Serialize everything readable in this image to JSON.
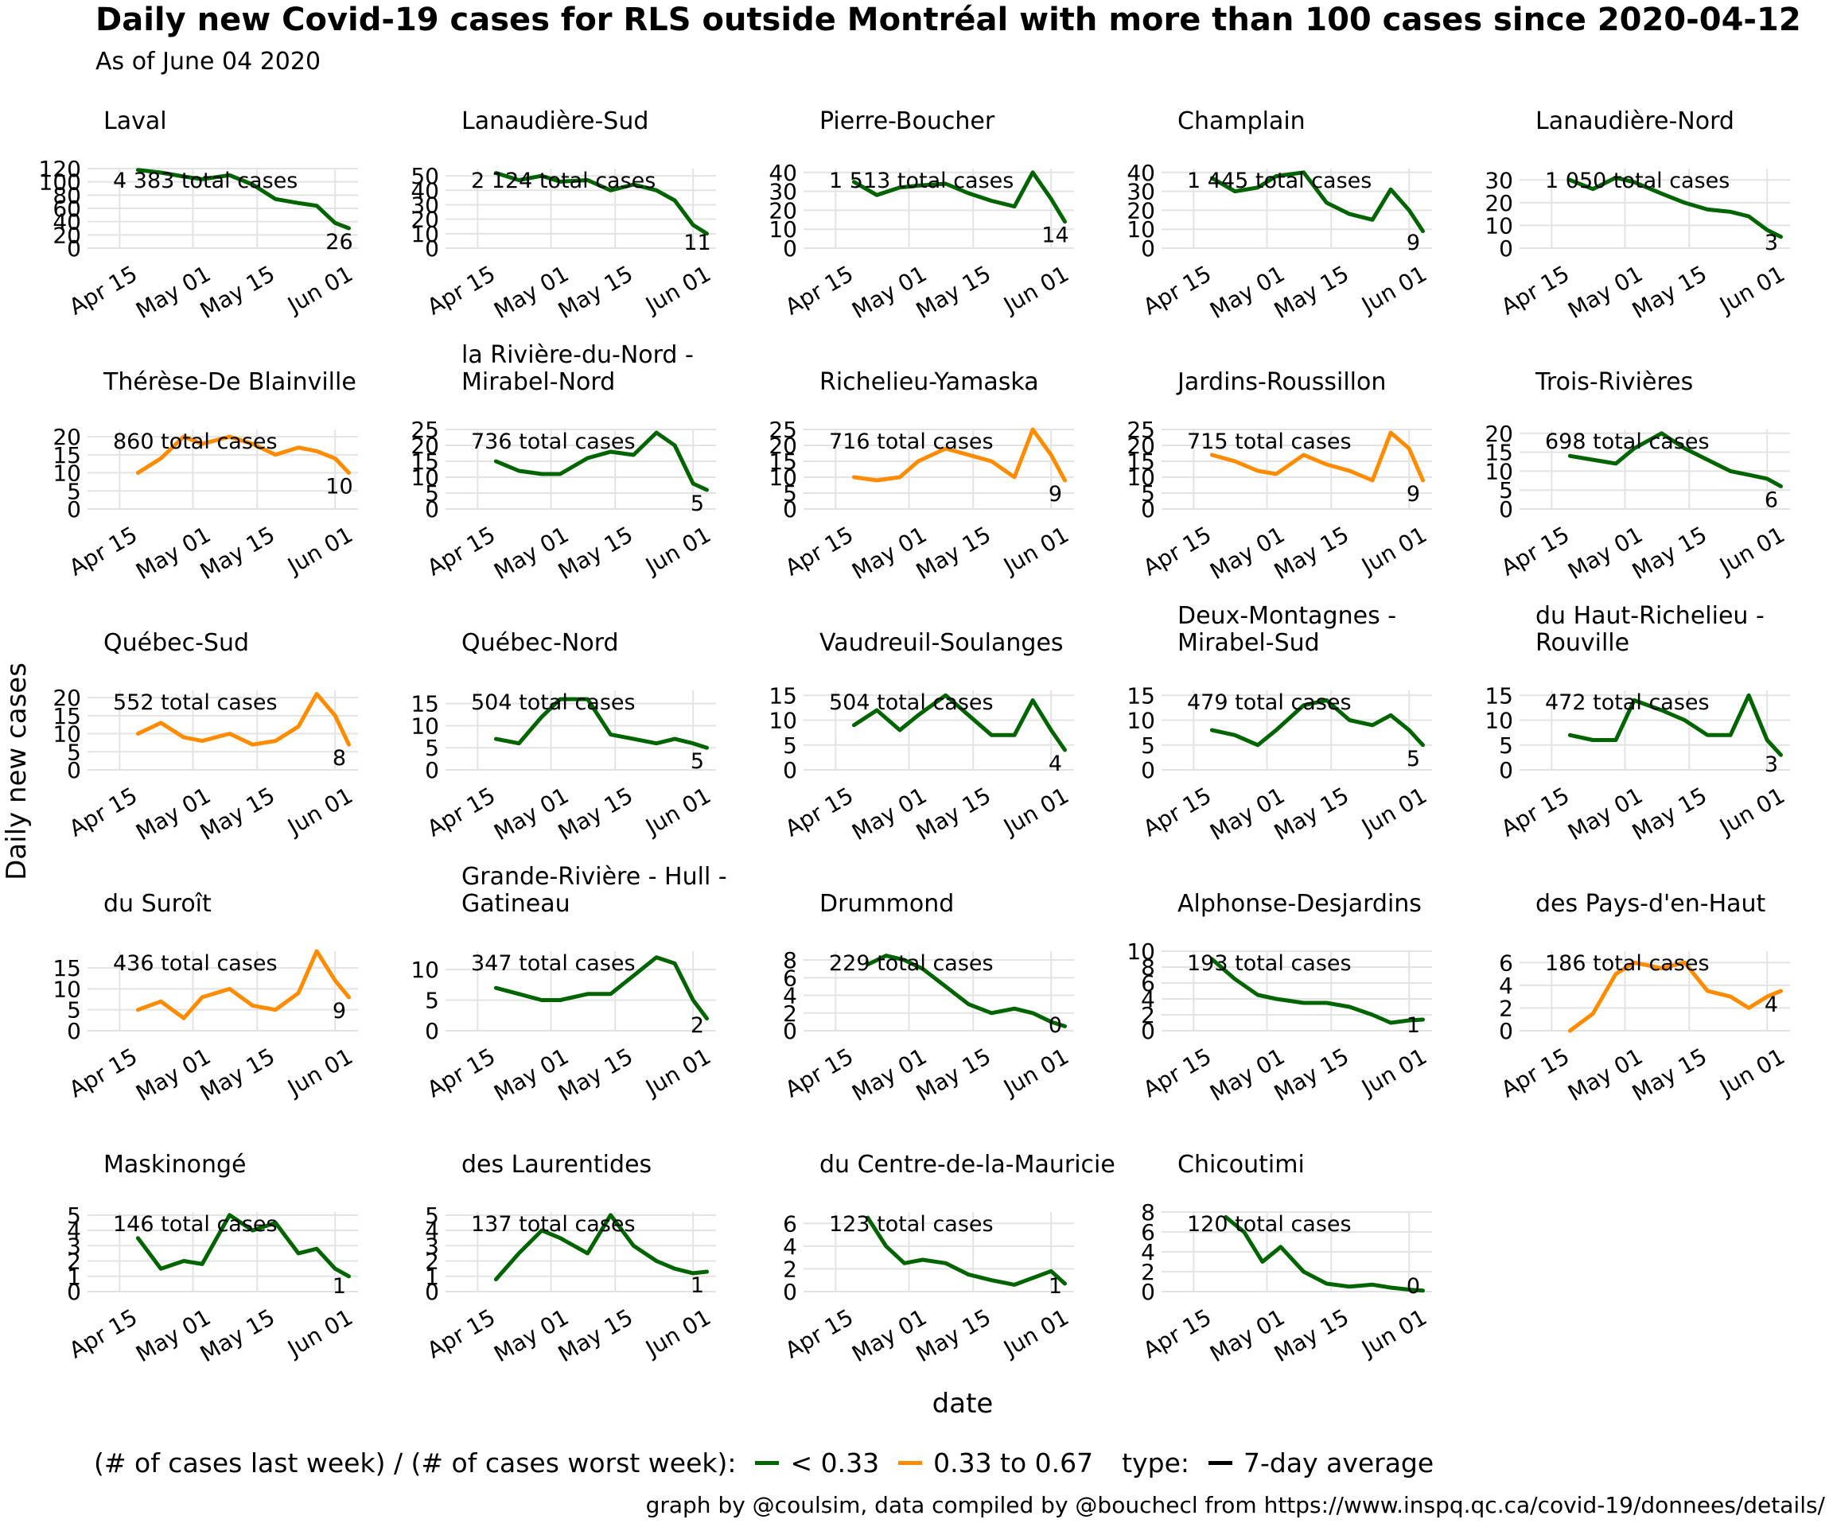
{
  "title": "Daily new Covid-19 cases for RLS outside Montréal with more than 100 cases since 2020-04-12",
  "subtitle": "As of June 04 2020",
  "legend": {
    "ratio_label": "(# of cases last week) / (# of cases worst week):",
    "items": [
      {
        "label": "< 0.33",
        "color": "#006400"
      },
      {
        "label": "0.33 to 0.67",
        "color": "#FF8C00"
      }
    ],
    "type_label": "type:",
    "type_item": {
      "label": "7-day average",
      "color": "#000000"
    }
  },
  "caption": "graph by @coulsim, data compiled by @bouchecl from https://www.inspq.qc.ca/covid-19/donnees/details/",
  "chart_data": {
    "type": "line",
    "xlabel": "date",
    "ylabel": "Daily new cases",
    "x_ticks": [
      "Apr 15",
      "May 01",
      "May 15",
      "Jun 01"
    ],
    "x_tick_dates": [
      "2020-04-15",
      "2020-05-01",
      "2020-05-15",
      "2020-06-01"
    ],
    "xlim": [
      "2020-04-08",
      "2020-06-06"
    ],
    "grid": true,
    "legend_position": "bottom",
    "facets": [
      {
        "name": "Laval",
        "total": "4 383 total cases",
        "last": "26",
        "color": "#006400",
        "yticks": [
          0,
          20,
          40,
          60,
          80,
          100,
          120
        ],
        "ylim": [
          0,
          120
        ],
        "x": [
          "2020-04-19",
          "2020-04-24",
          "2020-04-29",
          "2020-05-03",
          "2020-05-09",
          "2020-05-14",
          "2020-05-19",
          "2020-05-24",
          "2020-05-28",
          "2020-06-01",
          "2020-06-04"
        ],
        "y": [
          118,
          114,
          108,
          104,
          110,
          96,
          74,
          68,
          64,
          38,
          30
        ]
      },
      {
        "name": "Lanaudière-Sud",
        "total": "2 124 total cases",
        "last": "11",
        "color": "#006400",
        "yticks": [
          0,
          10,
          20,
          30,
          40,
          50
        ],
        "ylim": [
          0,
          55
        ],
        "x": [
          "2020-04-19",
          "2020-04-24",
          "2020-04-29",
          "2020-05-03",
          "2020-05-09",
          "2020-05-14",
          "2020-05-19",
          "2020-05-24",
          "2020-05-28",
          "2020-06-01",
          "2020-06-04"
        ],
        "y": [
          52,
          47,
          50,
          46,
          47,
          40,
          44,
          40,
          33,
          16,
          10
        ]
      },
      {
        "name": "Pierre-Boucher",
        "total": "1 513 total cases",
        "last": "14",
        "color": "#006400",
        "yticks": [
          0,
          10,
          20,
          30,
          40
        ],
        "ylim": [
          0,
          42
        ],
        "x": [
          "2020-04-19",
          "2020-04-24",
          "2020-04-29",
          "2020-05-03",
          "2020-05-09",
          "2020-05-14",
          "2020-05-19",
          "2020-05-24",
          "2020-05-28",
          "2020-06-01",
          "2020-06-04"
        ],
        "y": [
          35,
          28,
          32,
          33,
          34,
          29,
          25,
          22,
          40,
          26,
          14
        ]
      },
      {
        "name": "Champlain",
        "total": "1 445 total cases",
        "last": "9",
        "color": "#006400",
        "yticks": [
          0,
          10,
          20,
          30,
          40
        ],
        "ylim": [
          0,
          42
        ],
        "x": [
          "2020-04-19",
          "2020-04-24",
          "2020-04-29",
          "2020-05-03",
          "2020-05-09",
          "2020-05-14",
          "2020-05-19",
          "2020-05-24",
          "2020-05-28",
          "2020-06-01",
          "2020-06-04"
        ],
        "y": [
          37,
          30,
          32,
          38,
          40,
          24,
          18,
          15,
          31,
          20,
          9
        ]
      },
      {
        "name": "Lanaudière-Nord",
        "total": "1 050 total cases",
        "last": "3",
        "color": "#006400",
        "yticks": [
          0,
          10,
          20,
          30
        ],
        "ylim": [
          0,
          35
        ],
        "x": [
          "2020-04-19",
          "2020-04-24",
          "2020-04-29",
          "2020-05-03",
          "2020-05-09",
          "2020-05-14",
          "2020-05-19",
          "2020-05-24",
          "2020-05-28",
          "2020-06-01",
          "2020-06-04"
        ],
        "y": [
          30,
          26,
          31,
          29,
          24,
          20,
          17,
          16,
          14,
          8,
          5
        ]
      },
      {
        "name": "Thérèse-De Blainville",
        "total": "860 total cases",
        "last": "10",
        "color": "#FF8C00",
        "yticks": [
          0,
          5,
          10,
          15,
          20
        ],
        "ylim": [
          0,
          22
        ],
        "x": [
          "2020-04-19",
          "2020-04-24",
          "2020-04-29",
          "2020-05-03",
          "2020-05-09",
          "2020-05-14",
          "2020-05-19",
          "2020-05-24",
          "2020-05-28",
          "2020-06-01",
          "2020-06-04"
        ],
        "y": [
          10,
          14,
          20,
          18,
          20,
          18,
          15,
          17,
          16,
          14,
          10
        ]
      },
      {
        "name": "la Rivière-du-Nord - Mirabel-Nord",
        "total": "736 total cases",
        "last": "5",
        "color": "#006400",
        "yticks": [
          0,
          5,
          10,
          15,
          20,
          25
        ],
        "ylim": [
          0,
          25
        ],
        "x": [
          "2020-04-19",
          "2020-04-24",
          "2020-04-29",
          "2020-05-03",
          "2020-05-09",
          "2020-05-14",
          "2020-05-19",
          "2020-05-24",
          "2020-05-28",
          "2020-06-01",
          "2020-06-04"
        ],
        "y": [
          15,
          12,
          11,
          11,
          16,
          18,
          17,
          24,
          20,
          8,
          6
        ]
      },
      {
        "name": "Richelieu-Yamaska",
        "total": "716 total cases",
        "last": "9",
        "color": "#FF8C00",
        "yticks": [
          0,
          5,
          10,
          15,
          20,
          25
        ],
        "ylim": [
          0,
          25
        ],
        "x": [
          "2020-04-19",
          "2020-04-24",
          "2020-04-29",
          "2020-05-03",
          "2020-05-09",
          "2020-05-14",
          "2020-05-19",
          "2020-05-24",
          "2020-05-28",
          "2020-06-01",
          "2020-06-04"
        ],
        "y": [
          10,
          9,
          10,
          15,
          19,
          17,
          15,
          10,
          25,
          17,
          9
        ]
      },
      {
        "name": "Jardins-Roussillon",
        "total": "715 total cases",
        "last": "9",
        "color": "#FF8C00",
        "yticks": [
          0,
          5,
          10,
          15,
          20,
          25
        ],
        "ylim": [
          0,
          25
        ],
        "x": [
          "2020-04-19",
          "2020-04-24",
          "2020-04-29",
          "2020-05-03",
          "2020-05-09",
          "2020-05-14",
          "2020-05-19",
          "2020-05-24",
          "2020-05-28",
          "2020-06-01",
          "2020-06-04"
        ],
        "y": [
          17,
          15,
          12,
          11,
          17,
          14,
          12,
          9,
          24,
          19,
          9
        ]
      },
      {
        "name": "Trois-Rivières",
        "total": "698 total cases",
        "last": "6",
        "color": "#006400",
        "yticks": [
          0,
          5,
          10,
          15,
          20
        ],
        "ylim": [
          0,
          21
        ],
        "x": [
          "2020-04-19",
          "2020-04-24",
          "2020-04-29",
          "2020-05-03",
          "2020-05-09",
          "2020-05-14",
          "2020-05-19",
          "2020-05-24",
          "2020-05-28",
          "2020-06-01",
          "2020-06-04"
        ],
        "y": [
          14,
          13,
          12,
          16,
          20,
          16,
          13,
          10,
          9,
          8,
          6
        ]
      },
      {
        "name": "Québec-Sud",
        "total": "552 total cases",
        "last": "8",
        "color": "#FF8C00",
        "yticks": [
          0,
          5,
          10,
          15,
          20
        ],
        "ylim": [
          0,
          22
        ],
        "x": [
          "2020-04-19",
          "2020-04-24",
          "2020-04-29",
          "2020-05-03",
          "2020-05-09",
          "2020-05-14",
          "2020-05-19",
          "2020-05-24",
          "2020-05-28",
          "2020-06-01",
          "2020-06-04"
        ],
        "y": [
          10,
          13,
          9,
          8,
          10,
          7,
          8,
          12,
          21,
          15,
          7
        ]
      },
      {
        "name": "Québec-Nord",
        "total": "504 total cases",
        "last": "5",
        "color": "#006400",
        "yticks": [
          0,
          5,
          10,
          15
        ],
        "ylim": [
          0,
          18
        ],
        "x": [
          "2020-04-19",
          "2020-04-24",
          "2020-04-29",
          "2020-05-03",
          "2020-05-09",
          "2020-05-14",
          "2020-05-19",
          "2020-05-24",
          "2020-05-28",
          "2020-06-01",
          "2020-06-04"
        ],
        "y": [
          7,
          6,
          12,
          16,
          16,
          8,
          7,
          6,
          7,
          6,
          5
        ]
      },
      {
        "name": "Vaudreuil-Soulanges",
        "total": "504 total cases",
        "last": "4",
        "color": "#006400",
        "yticks": [
          0,
          5,
          10,
          15
        ],
        "ylim": [
          0,
          16
        ],
        "x": [
          "2020-04-19",
          "2020-04-24",
          "2020-04-29",
          "2020-05-03",
          "2020-05-09",
          "2020-05-14",
          "2020-05-19",
          "2020-05-24",
          "2020-05-28",
          "2020-06-01",
          "2020-06-04"
        ],
        "y": [
          9,
          12,
          8,
          11,
          15,
          11,
          7,
          7,
          14,
          8,
          4
        ]
      },
      {
        "name": "Deux-Montagnes - Mirabel-Sud",
        "total": "479 total cases",
        "last": "5",
        "color": "#006400",
        "yticks": [
          0,
          5,
          10,
          15
        ],
        "ylim": [
          0,
          16
        ],
        "x": [
          "2020-04-19",
          "2020-04-24",
          "2020-04-29",
          "2020-05-03",
          "2020-05-09",
          "2020-05-14",
          "2020-05-19",
          "2020-05-24",
          "2020-05-28",
          "2020-06-01",
          "2020-06-04"
        ],
        "y": [
          8,
          7,
          5,
          8,
          13,
          14,
          10,
          9,
          11,
          8,
          5
        ]
      },
      {
        "name": "du Haut-Richelieu - Rouville",
        "total": "472 total cases",
        "last": "3",
        "color": "#006400",
        "yticks": [
          0,
          5,
          10,
          15
        ],
        "ylim": [
          0,
          16
        ],
        "x": [
          "2020-04-19",
          "2020-04-24",
          "2020-04-29",
          "2020-05-03",
          "2020-05-09",
          "2020-05-14",
          "2020-05-19",
          "2020-05-24",
          "2020-05-28",
          "2020-06-01",
          "2020-06-04"
        ],
        "y": [
          7,
          6,
          6,
          14,
          12,
          10,
          7,
          7,
          15,
          6,
          3
        ]
      },
      {
        "name": "du Suroît",
        "total": "436 total cases",
        "last": "9",
        "color": "#FF8C00",
        "yticks": [
          0,
          5,
          10,
          15
        ],
        "ylim": [
          0,
          19
        ],
        "x": [
          "2020-04-19",
          "2020-04-24",
          "2020-04-29",
          "2020-05-03",
          "2020-05-09",
          "2020-05-14",
          "2020-05-19",
          "2020-05-24",
          "2020-05-28",
          "2020-06-01",
          "2020-06-04"
        ],
        "y": [
          5,
          7,
          3,
          8,
          10,
          6,
          5,
          9,
          19,
          12,
          8
        ]
      },
      {
        "name": "Grande-Rivière - Hull - Gatineau",
        "total": "347 total cases",
        "last": "2",
        "color": "#006400",
        "yticks": [
          0,
          5,
          10
        ],
        "ylim": [
          0,
          13
        ],
        "x": [
          "2020-04-19",
          "2020-04-24",
          "2020-04-29",
          "2020-05-03",
          "2020-05-09",
          "2020-05-14",
          "2020-05-19",
          "2020-05-24",
          "2020-05-28",
          "2020-06-01",
          "2020-06-04"
        ],
        "y": [
          7,
          6,
          5,
          5,
          6,
          6,
          9,
          12,
          11,
          5,
          2
        ]
      },
      {
        "name": "Drummond",
        "total": "229 total cases",
        "last": "0",
        "color": "#006400",
        "yticks": [
          0,
          2,
          4,
          6,
          8
        ],
        "ylim": [
          0,
          9
        ],
        "x": [
          "2020-04-22",
          "2020-04-26",
          "2020-04-30",
          "2020-05-04",
          "2020-05-09",
          "2020-05-14",
          "2020-05-19",
          "2020-05-24",
          "2020-05-28",
          "2020-06-01",
          "2020-06-04"
        ],
        "y": [
          7.5,
          8.5,
          8,
          7,
          5,
          3,
          2,
          2.5,
          2,
          1,
          0.5
        ]
      },
      {
        "name": "Alphonse-Desjardins",
        "total": "193 total cases",
        "last": "1",
        "color": "#006400",
        "yticks": [
          0,
          2,
          4,
          6,
          8,
          10
        ],
        "ylim": [
          0,
          10
        ],
        "x": [
          "2020-04-19",
          "2020-04-24",
          "2020-04-29",
          "2020-05-03",
          "2020-05-09",
          "2020-05-14",
          "2020-05-19",
          "2020-05-24",
          "2020-05-28",
          "2020-06-01",
          "2020-06-04"
        ],
        "y": [
          9,
          6.5,
          4.5,
          4,
          3.5,
          3.5,
          3,
          2,
          1,
          1.3,
          1.4
        ]
      },
      {
        "name": "des Pays-d'en-Haut",
        "total": "186 total cases",
        "last": "4",
        "color": "#FF8C00",
        "yticks": [
          0,
          2,
          4,
          6
        ],
        "ylim": [
          0,
          7
        ],
        "x": [
          "2020-04-19",
          "2020-04-24",
          "2020-04-29",
          "2020-05-03",
          "2020-05-09",
          "2020-05-14",
          "2020-05-19",
          "2020-05-24",
          "2020-05-28",
          "2020-06-01",
          "2020-06-04"
        ],
        "y": [
          0,
          1.5,
          5,
          6,
          5.5,
          6,
          3.5,
          3,
          2,
          3,
          3.5
        ]
      },
      {
        "name": "Maskinongé",
        "total": "146 total cases",
        "last": "1",
        "color": "#006400",
        "yticks": [
          0,
          1,
          2,
          3,
          4,
          5
        ],
        "ylim": [
          0,
          5.2
        ],
        "x": [
          "2020-04-19",
          "2020-04-24",
          "2020-04-29",
          "2020-05-03",
          "2020-05-09",
          "2020-05-14",
          "2020-05-19",
          "2020-05-24",
          "2020-05-28",
          "2020-06-01",
          "2020-06-04"
        ],
        "y": [
          3.5,
          1.5,
          2,
          1.8,
          5,
          4,
          4.5,
          2.5,
          2.8,
          1.5,
          1
        ]
      },
      {
        "name": "des Laurentides",
        "total": "137 total cases",
        "last": "1",
        "color": "#006400",
        "yticks": [
          0,
          1,
          2,
          3,
          4,
          5
        ],
        "ylim": [
          0,
          5.2
        ],
        "x": [
          "2020-04-19",
          "2020-04-24",
          "2020-04-29",
          "2020-05-03",
          "2020-05-09",
          "2020-05-14",
          "2020-05-19",
          "2020-05-24",
          "2020-05-28",
          "2020-06-01",
          "2020-06-04"
        ],
        "y": [
          0.8,
          2.5,
          4,
          3.5,
          2.5,
          5,
          3,
          2,
          1.5,
          1.2,
          1.3
        ]
      },
      {
        "name": "du Centre-de-la-Mauricie",
        "total": "123 total cases",
        "last": "1",
        "color": "#006400",
        "yticks": [
          0,
          2,
          4,
          6
        ],
        "ylim": [
          0,
          7
        ],
        "x": [
          "2020-04-22",
          "2020-04-26",
          "2020-04-30",
          "2020-05-04",
          "2020-05-09",
          "2020-05-14",
          "2020-05-19",
          "2020-05-24",
          "2020-05-28",
          "2020-06-01",
          "2020-06-04"
        ],
        "y": [
          6.5,
          4,
          2.5,
          2.8,
          2.5,
          1.5,
          1,
          0.6,
          1.2,
          1.8,
          0.7
        ]
      },
      {
        "name": "Chicoutimi",
        "total": "120 total cases",
        "last": "0",
        "color": "#006400",
        "yticks": [
          0,
          2,
          4,
          6,
          8
        ],
        "ylim": [
          0,
          8
        ],
        "x": [
          "2020-04-22",
          "2020-04-26",
          "2020-04-30",
          "2020-05-04",
          "2020-05-09",
          "2020-05-14",
          "2020-05-19",
          "2020-05-24",
          "2020-05-28",
          "2020-06-01",
          "2020-06-04"
        ],
        "y": [
          7.5,
          6,
          3,
          4.5,
          2,
          0.8,
          0.5,
          0.7,
          0.4,
          0.2,
          0.1
        ]
      }
    ]
  }
}
